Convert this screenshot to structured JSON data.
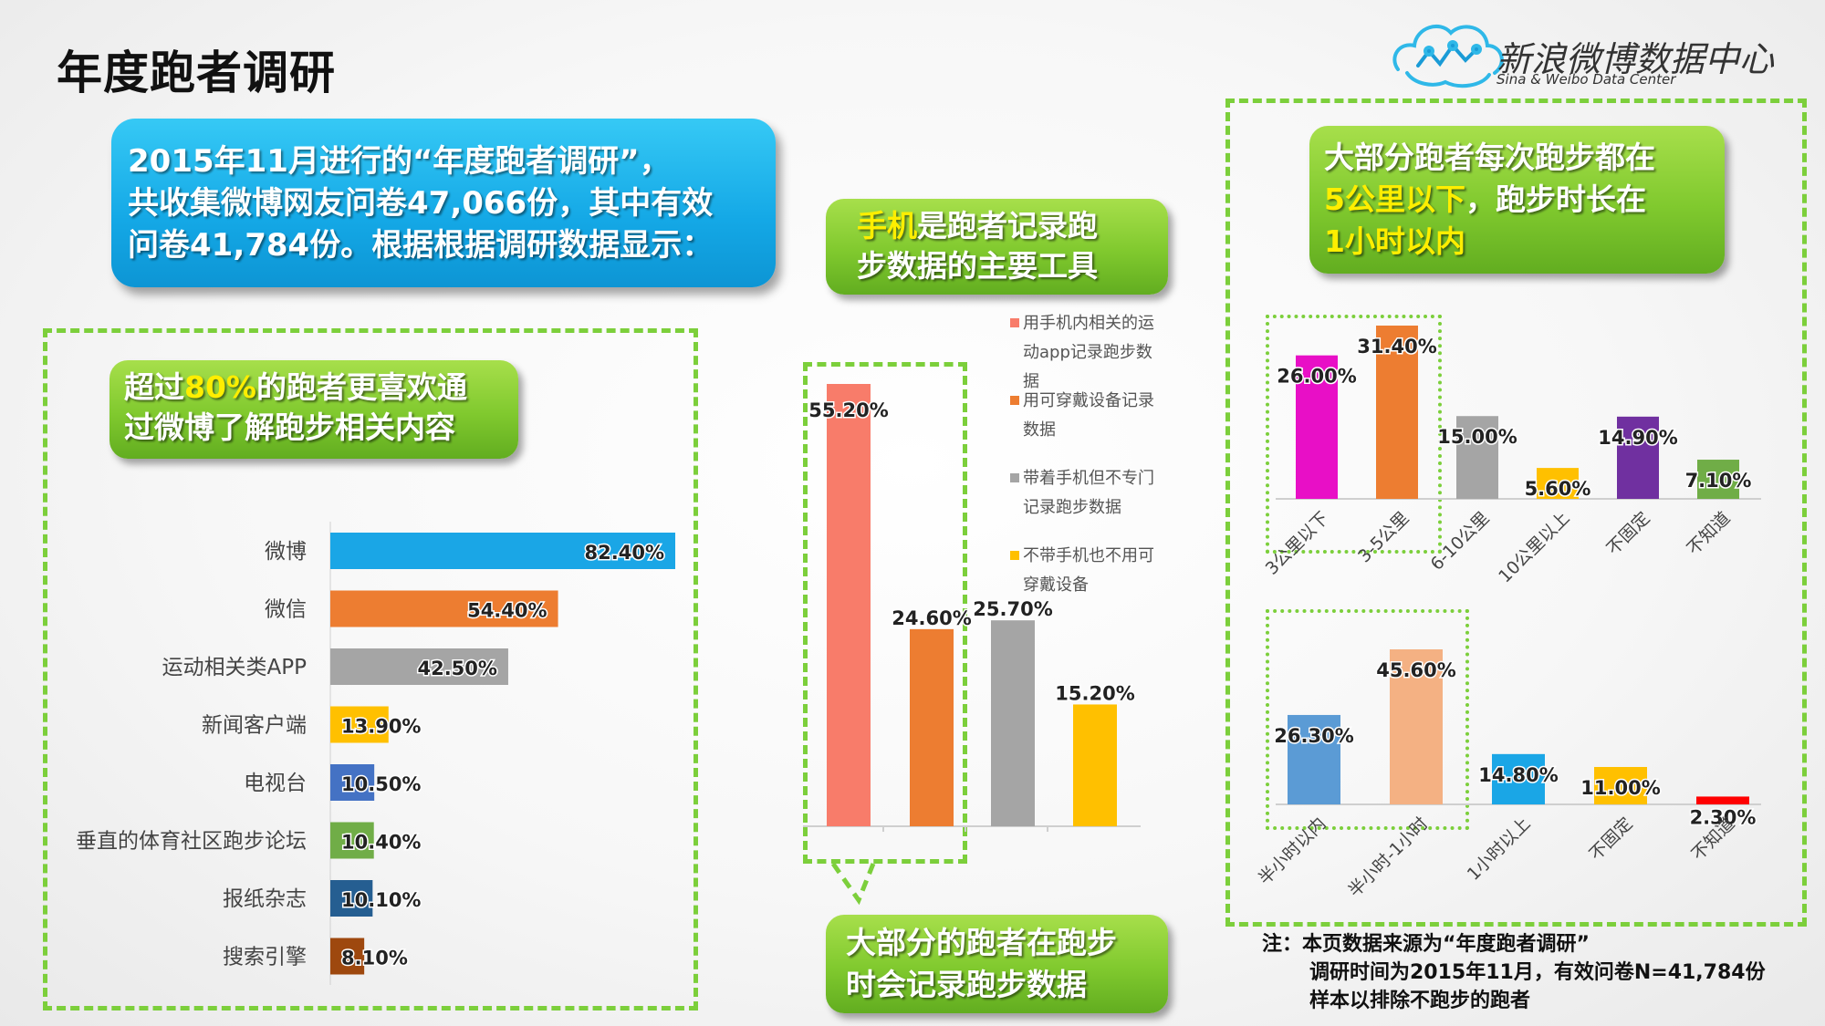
{
  "page_title": "年度跑者调研",
  "logo": {
    "name": "新浪微博数据中心",
    "subtitle": "Sina & Weibo Data Center"
  },
  "intro": {
    "line1": "2015年11月进行的“年度跑者调研”，",
    "line2": "共收集微博网友问卷47,066份，其中有效",
    "line3": "问卷41,784份。根据根据调研数据显示："
  },
  "callout_weibo": {
    "pre": "超过",
    "highlight": "80%",
    "post": "的跑者更喜欢通",
    "line2": "过微博了解跑步相关内容"
  },
  "callout_phone": {
    "highlight": "手机",
    "post": "是跑者记录跑",
    "line2": "步数据的主要工具"
  },
  "callout_record": {
    "line1": "大部分的跑者在跑步",
    "line2": "时会记录跑步数据"
  },
  "callout_distance": {
    "line1": "大部分跑者每次跑步都在",
    "highlight1": "5公里以下",
    "mid": "，跑步时长在",
    "highlight2": "1小时以内"
  },
  "note": {
    "line1": "注：本页数据来源为“年度跑者调研”",
    "line2": "调研时间为2015年11月，有效问卷N=41,784份",
    "line3": "样本以排除不跑步的跑者"
  },
  "colors": {
    "blue": "#1aa6e6",
    "orange": "#ed7d31",
    "gray": "#a5a5a5",
    "yellow": "#ffc000",
    "royal": "#4472c4",
    "green": "#70ad47",
    "navy": "#255e91",
    "brown": "#9e480e",
    "salmon": "#f87c6a",
    "magenta": "#e80fc6",
    "purple": "#7030a0",
    "steel": "#5b9bd5",
    "peach": "#f4b183",
    "red": "#ff0000",
    "dash_green": "#7ccf3b"
  },
  "chart_data": [
    {
      "type": "bar",
      "orientation": "horizontal",
      "categories": [
        "微博",
        "微信",
        "运动相关类APP",
        "新闻客户端",
        "电视台",
        "垂直的体育社区跑步论坛",
        "报纸杂志",
        "搜索引擎"
      ],
      "values": [
        82.4,
        54.4,
        42.5,
        13.9,
        10.5,
        10.4,
        10.1,
        8.1
      ],
      "labels": [
        "82.40%",
        "54.40%",
        "42.50%",
        "13.90%",
        "10.50%",
        "10.40%",
        "10.10%",
        "8.10%"
      ],
      "colors": [
        "#1aa6e6",
        "#ed7d31",
        "#a5a5a5",
        "#ffc000",
        "#4472c4",
        "#70ad47",
        "#255e91",
        "#9e480e"
      ],
      "xlim": [
        0,
        82.4
      ]
    },
    {
      "type": "bar",
      "categories": [
        "用手机内相关的运动app记录跑步数据",
        "用可穿戴设备记录数据",
        "带着手机但不专门记录跑步数据",
        "不带手机也不用可穿戴设备"
      ],
      "values": [
        55.2,
        24.6,
        25.7,
        15.2
      ],
      "labels": [
        "55.20%",
        "24.60%",
        "25.70%",
        "15.20%"
      ],
      "colors": [
        "#f87c6a",
        "#ed7d31",
        "#a5a5a5",
        "#ffc000"
      ],
      "legend": [
        {
          "lines": [
            "用手机内相关的运",
            "动app记录跑步数",
            "据"
          ]
        },
        {
          "lines": [
            "用可穿戴设备记录",
            "数据"
          ]
        },
        {
          "lines": [
            "带着手机但不专门",
            "记录跑步数据"
          ]
        },
        {
          "lines": [
            "不带手机也不用可",
            "穿戴设备"
          ]
        }
      ],
      "legend_position": "right",
      "ylim": [
        0,
        55.2
      ]
    },
    {
      "type": "bar",
      "categories": [
        "3公里以下",
        "3-5公里",
        "6-10公里",
        "10公里以上",
        "不固定",
        "不知道"
      ],
      "values": [
        26.0,
        31.4,
        15.0,
        5.6,
        14.9,
        7.1
      ],
      "labels": [
        "26.00%",
        "31.40%",
        "15.00%",
        "5.60%",
        "14.90%",
        "7.10%"
      ],
      "colors": [
        "#e80fc6",
        "#ed7d31",
        "#a5a5a5",
        "#ffc000",
        "#7030a0",
        "#70ad47"
      ],
      "ylim": [
        0,
        31.4
      ]
    },
    {
      "type": "bar",
      "categories": [
        "半小时以内",
        "半小时-1小时",
        "1小时以上",
        "不固定",
        "不知道"
      ],
      "values": [
        26.3,
        45.6,
        14.8,
        11.0,
        2.3
      ],
      "labels": [
        "26.30%",
        "45.60%",
        "14.80%",
        "11.00%",
        "2.30%"
      ],
      "colors": [
        "#5b9bd5",
        "#f4b183",
        "#1aa6e6",
        "#ffc000",
        "#ff0000"
      ],
      "ylim": [
        0,
        45.6
      ]
    }
  ]
}
